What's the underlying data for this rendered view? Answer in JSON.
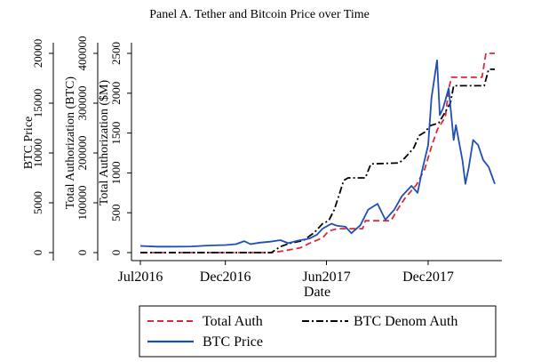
{
  "chart_data": {
    "type": "line",
    "title": "Panel A. Tether and Bitcoin Price over Time",
    "xlabel": "Date",
    "x_ticks": [
      "Jul2016",
      "Dec2016",
      "Jun2017",
      "Dec2017"
    ],
    "x_tick_dates": [
      "2016-07-01",
      "2016-12-01",
      "2017-06-01",
      "2017-12-01"
    ],
    "xlim": [
      "2016-07-01",
      "2018-03-31"
    ],
    "axes": [
      {
        "label": "BTC Price",
        "ticks": [
          0,
          5000,
          10000,
          15000,
          20000
        ],
        "ylim": [
          0,
          20000
        ],
        "series": "BTC Price"
      },
      {
        "label": "Total Authorization (BTC)",
        "ticks": [
          0,
          100000,
          200000,
          300000,
          400000
        ],
        "ylim": [
          0,
          400000
        ],
        "series": "BTC Denom Auth"
      },
      {
        "label": "Total Authorization ($M)",
        "ticks": [
          0,
          500,
          1000,
          1500,
          2000,
          2500
        ],
        "ylim": [
          0,
          2500
        ],
        "series": "Total Auth"
      }
    ],
    "grid": false,
    "legend_position": "bottom",
    "series": [
      {
        "name": "Total Auth",
        "color": "#d62c3a",
        "style": "dashed",
        "axis": "Total Authorization ($M)",
        "points": [
          [
            "2016-07-01",
            0
          ],
          [
            "2017-02-22",
            0
          ],
          [
            "2017-03-15",
            20
          ],
          [
            "2017-04-15",
            60
          ],
          [
            "2017-05-01",
            115
          ],
          [
            "2017-05-25",
            185
          ],
          [
            "2017-06-05",
            270
          ],
          [
            "2017-06-20",
            300
          ],
          [
            "2017-08-05",
            300
          ],
          [
            "2017-08-10",
            400
          ],
          [
            "2017-09-25",
            400
          ],
          [
            "2017-10-05",
            520
          ],
          [
            "2017-10-20",
            680
          ],
          [
            "2017-11-10",
            850
          ],
          [
            "2017-11-25",
            1050
          ],
          [
            "2017-12-08",
            1350
          ],
          [
            "2017-12-18",
            1550
          ],
          [
            "2018-01-01",
            1700
          ],
          [
            "2018-01-07",
            2050
          ],
          [
            "2018-01-12",
            2200
          ],
          [
            "2018-03-08",
            2200
          ],
          [
            "2018-03-15",
            2500
          ],
          [
            "2018-03-31",
            2500
          ]
        ]
      },
      {
        "name": "BTC Denom Auth",
        "color": "#000000",
        "style": "dashdot",
        "axis": "Total Authorization (BTC)",
        "points": [
          [
            "2016-07-01",
            0
          ],
          [
            "2017-02-22",
            0
          ],
          [
            "2017-03-10",
            12000
          ],
          [
            "2017-03-25",
            18000
          ],
          [
            "2017-04-10",
            22000
          ],
          [
            "2017-04-20",
            24000
          ],
          [
            "2017-05-10",
            40000
          ],
          [
            "2017-05-25",
            58000
          ],
          [
            "2017-06-05",
            64000
          ],
          [
            "2017-06-15",
            86000
          ],
          [
            "2017-06-25",
            120000
          ],
          [
            "2017-07-02",
            145000
          ],
          [
            "2017-07-10",
            150000
          ],
          [
            "2017-08-10",
            150000
          ],
          [
            "2017-08-20",
            178000
          ],
          [
            "2017-10-10",
            180000
          ],
          [
            "2017-10-20",
            190000
          ],
          [
            "2017-11-05",
            210000
          ],
          [
            "2017-11-15",
            235000
          ],
          [
            "2017-11-25",
            242000
          ],
          [
            "2017-12-05",
            255000
          ],
          [
            "2017-12-20",
            260000
          ],
          [
            "2018-01-10",
            300000
          ],
          [
            "2018-01-16",
            335000
          ],
          [
            "2018-03-12",
            335000
          ],
          [
            "2018-03-20",
            368000
          ],
          [
            "2018-03-31",
            368000
          ]
        ]
      },
      {
        "name": "BTC Price",
        "color": "#1f4fb4",
        "style": "solid",
        "axis": "BTC Price",
        "points": [
          [
            "2016-07-01",
            670
          ],
          [
            "2016-08-01",
            600
          ],
          [
            "2016-09-01",
            600
          ],
          [
            "2016-10-01",
            620
          ],
          [
            "2016-11-01",
            710
          ],
          [
            "2016-12-01",
            760
          ],
          [
            "2016-12-20",
            850
          ],
          [
            "2017-01-04",
            1150
          ],
          [
            "2017-01-15",
            850
          ],
          [
            "2017-02-01",
            1000
          ],
          [
            "2017-02-20",
            1100
          ],
          [
            "2017-03-10",
            1250
          ],
          [
            "2017-03-24",
            950
          ],
          [
            "2017-04-10",
            1200
          ],
          [
            "2017-05-01",
            1400
          ],
          [
            "2017-05-15",
            1800
          ],
          [
            "2017-05-25",
            2400
          ],
          [
            "2017-06-10",
            2900
          ],
          [
            "2017-06-20",
            2700
          ],
          [
            "2017-07-05",
            2600
          ],
          [
            "2017-07-16",
            1950
          ],
          [
            "2017-08-01",
            2750
          ],
          [
            "2017-08-15",
            4300
          ],
          [
            "2017-09-01",
            4900
          ],
          [
            "2017-09-15",
            3300
          ],
          [
            "2017-10-01",
            4300
          ],
          [
            "2017-10-15",
            5700
          ],
          [
            "2017-11-01",
            6700
          ],
          [
            "2017-11-12",
            6000
          ],
          [
            "2017-11-20",
            8200
          ],
          [
            "2017-12-01",
            10800
          ],
          [
            "2017-12-07",
            15500
          ],
          [
            "2017-12-17",
            19300
          ],
          [
            "2017-12-22",
            13800
          ],
          [
            "2017-12-28",
            14500
          ],
          [
            "2018-01-07",
            16500
          ],
          [
            "2018-01-16",
            11300
          ],
          [
            "2018-01-20",
            12800
          ],
          [
            "2018-02-01",
            9200
          ],
          [
            "2018-02-06",
            6900
          ],
          [
            "2018-02-12",
            8500
          ],
          [
            "2018-02-20",
            11300
          ],
          [
            "2018-03-01",
            10800
          ],
          [
            "2018-03-10",
            9300
          ],
          [
            "2018-03-20",
            8600
          ],
          [
            "2018-03-31",
            6900
          ]
        ]
      }
    ]
  }
}
